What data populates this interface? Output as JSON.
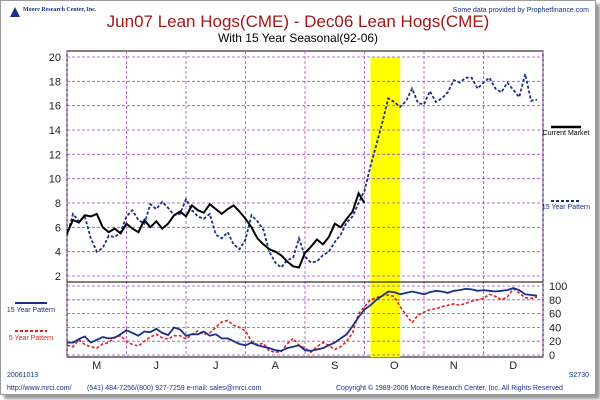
{
  "header": {
    "logo_text": "Moore Research Center, Inc.",
    "title": "Jun07 Lean Hogs(CME) - Dec06 Lean Hogs(CME)",
    "subtitle": "With 15 Year Seasonal(92-06)",
    "source_note": "Some data provided by Prophetfinance.com"
  },
  "footer": {
    "date_code": "20061013",
    "contact": "(541) 484-7256/(800) 927-7259   e-mail: sales@mrci.com",
    "website": "http://www.mrci.com/",
    "copyright": "Copyright © 1989-2006 Moore Research Center, Inc. All Rights Reserved",
    "code": "S2730"
  },
  "colors": {
    "current_market": "#000000",
    "pattern_15yr": "#1a2f8a",
    "pattern_5yr": "#e02020",
    "highlight": "#ffff00",
    "grid": "#9a4cc4",
    "title": "#a01818"
  },
  "chart_data": [
    {
      "type": "line",
      "title": "Jun07 Lean Hogs(CME) - Dec06 Lean Hogs(CME)",
      "ylim": [
        2,
        20
      ],
      "yticks": [
        2,
        4,
        6,
        8,
        10,
        12,
        14,
        16,
        18,
        20
      ],
      "x_month_labels": [
        "M",
        "J",
        "J",
        "A",
        "S",
        "O",
        "N",
        "D"
      ],
      "x_range_months": [
        0,
        8
      ],
      "highlight_window_months": [
        5.1,
        5.6
      ],
      "grid": true,
      "legend": [
        {
          "label": "Current Market",
          "style": "solid",
          "color": "#000000"
        },
        {
          "label": "15 Year Pattern",
          "style": "dashed",
          "color": "#1a2f8a"
        }
      ],
      "series": [
        {
          "name": "Current Market",
          "style": "solid",
          "x": [
            0.0,
            0.1,
            0.2,
            0.3,
            0.4,
            0.5,
            0.6,
            0.7,
            0.8,
            0.9,
            1.0,
            1.1,
            1.2,
            1.3,
            1.4,
            1.5,
            1.6,
            1.7,
            1.8,
            1.9,
            2.0,
            2.1,
            2.2,
            2.3,
            2.4,
            2.5,
            2.6,
            2.7,
            2.8,
            2.9,
            3.0,
            3.1,
            3.2,
            3.3,
            3.4,
            3.5,
            3.6,
            3.7,
            3.8,
            3.9,
            4.0,
            4.1,
            4.2,
            4.3,
            4.4,
            4.5,
            4.6,
            4.7,
            4.8,
            4.9,
            5.0
          ],
          "y": [
            5.5,
            6.6,
            6.4,
            7.0,
            6.9,
            7.1,
            6.0,
            5.6,
            5.9,
            5.5,
            6.3,
            5.9,
            5.6,
            6.6,
            6.0,
            6.5,
            5.9,
            6.3,
            7.0,
            7.3,
            6.9,
            7.8,
            7.4,
            7.2,
            7.9,
            7.5,
            7.1,
            7.5,
            7.8,
            7.3,
            6.7,
            6.0,
            5.1,
            4.6,
            4.2,
            4.0,
            3.7,
            3.2,
            2.8,
            2.7,
            3.9,
            4.4,
            5.0,
            4.6,
            5.2,
            6.3,
            6.0,
            6.7,
            7.3,
            8.8,
            8.0
          ]
        },
        {
          "name": "15 Year Pattern",
          "style": "dashed",
          "x": [
            0.0,
            0.1,
            0.2,
            0.3,
            0.4,
            0.5,
            0.6,
            0.7,
            0.8,
            0.9,
            1.0,
            1.1,
            1.2,
            1.3,
            1.4,
            1.5,
            1.6,
            1.7,
            1.8,
            1.9,
            2.0,
            2.1,
            2.2,
            2.3,
            2.4,
            2.5,
            2.6,
            2.7,
            2.8,
            2.9,
            3.0,
            3.1,
            3.2,
            3.3,
            3.4,
            3.5,
            3.6,
            3.7,
            3.8,
            3.9,
            4.0,
            4.1,
            4.2,
            4.3,
            4.4,
            4.5,
            4.6,
            4.7,
            4.8,
            4.9,
            5.0,
            5.1,
            5.2,
            5.3,
            5.4,
            5.5,
            5.6,
            5.7,
            5.8,
            5.9,
            6.0,
            6.1,
            6.2,
            6.3,
            6.4,
            6.5,
            6.6,
            6.7,
            6.8,
            6.9,
            7.0,
            7.1,
            7.2,
            7.3,
            7.4,
            7.5,
            7.6,
            7.7,
            7.8,
            7.9
          ],
          "y": [
            5.3,
            7.1,
            6.5,
            6.9,
            5.1,
            4.0,
            4.3,
            5.3,
            5.2,
            5.6,
            6.9,
            7.4,
            6.6,
            6.3,
            7.9,
            7.5,
            8.1,
            7.6,
            7.0,
            7.1,
            8.3,
            7.4,
            6.9,
            6.7,
            7.1,
            5.4,
            5.1,
            5.6,
            4.6,
            4.2,
            5.0,
            7.0,
            6.5,
            5.8,
            4.0,
            3.1,
            2.7,
            3.3,
            3.5,
            5.1,
            3.6,
            3.1,
            3.2,
            3.7,
            4.0,
            4.8,
            5.4,
            6.4,
            6.9,
            8.0,
            9.0,
            11.0,
            12.8,
            14.6,
            16.6,
            16.3,
            15.9,
            16.4,
            17.4,
            16.2,
            16.1,
            17.2,
            16.3,
            16.6,
            17.1,
            18.1,
            17.9,
            18.3,
            18.3,
            17.4,
            17.9,
            18.3,
            17.4,
            17.1,
            17.9,
            17.3,
            16.7,
            18.6,
            16.4,
            16.5
          ]
        }
      ]
    },
    {
      "type": "line",
      "ylim": [
        0,
        100
      ],
      "yticks": [
        0,
        20,
        40,
        60,
        80,
        100
      ],
      "x_month_labels": [
        "M",
        "J",
        "J",
        "A",
        "S",
        "O",
        "N",
        "D"
      ],
      "x_range_months": [
        0,
        8
      ],
      "grid": true,
      "legend": [
        {
          "label": "15 Year Pattern",
          "style": "solid",
          "color": "#1a2f8a"
        },
        {
          "label": "5 Year Pattern",
          "style": "dashed",
          "color": "#e02020"
        }
      ],
      "series": [
        {
          "name": "15 Year Pattern",
          "style": "solid",
          "x": [
            0.0,
            0.1,
            0.2,
            0.3,
            0.4,
            0.5,
            0.6,
            0.7,
            0.8,
            0.9,
            1.0,
            1.1,
            1.2,
            1.3,
            1.4,
            1.5,
            1.6,
            1.7,
            1.8,
            1.9,
            2.0,
            2.1,
            2.2,
            2.3,
            2.4,
            2.5,
            2.6,
            2.7,
            2.8,
            2.9,
            3.0,
            3.1,
            3.2,
            3.3,
            3.4,
            3.5,
            3.6,
            3.7,
            3.8,
            3.9,
            4.0,
            4.1,
            4.2,
            4.3,
            4.4,
            4.5,
            4.6,
            4.7,
            4.8,
            4.9,
            5.0,
            5.1,
            5.2,
            5.3,
            5.4,
            5.5,
            5.6,
            5.7,
            5.8,
            5.9,
            6.0,
            6.1,
            6.2,
            6.3,
            6.4,
            6.5,
            6.6,
            6.7,
            6.8,
            6.9,
            7.0,
            7.1,
            7.2,
            7.3,
            7.4,
            7.5,
            7.6,
            7.7,
            7.8,
            7.9
          ],
          "y": [
            18,
            18,
            23,
            27,
            18,
            22,
            26,
            24,
            25,
            30,
            36,
            32,
            28,
            34,
            33,
            38,
            32,
            29,
            40,
            37,
            28,
            30,
            30,
            34,
            28,
            30,
            24,
            24,
            20,
            16,
            14,
            18,
            14,
            12,
            10,
            7,
            6,
            10,
            12,
            14,
            7,
            6,
            8,
            10,
            14,
            18,
            24,
            30,
            42,
            55,
            66,
            72,
            80,
            86,
            92,
            91,
            88,
            90,
            92,
            90,
            88,
            91,
            93,
            92,
            90,
            93,
            94,
            96,
            95,
            93,
            94,
            93,
            92,
            93,
            94,
            97,
            94,
            88,
            87,
            86
          ]
        },
        {
          "name": "5 Year Pattern",
          "style": "dashed",
          "x": [
            0.0,
            0.1,
            0.2,
            0.3,
            0.4,
            0.5,
            0.6,
            0.7,
            0.8,
            0.9,
            1.0,
            1.1,
            1.2,
            1.3,
            1.4,
            1.5,
            1.6,
            1.7,
            1.8,
            1.9,
            2.0,
            2.1,
            2.2,
            2.3,
            2.4,
            2.5,
            2.6,
            2.7,
            2.8,
            2.9,
            3.0,
            3.1,
            3.2,
            3.3,
            3.4,
            3.5,
            3.6,
            3.7,
            3.8,
            3.9,
            4.0,
            4.1,
            4.2,
            4.3,
            4.4,
            4.5,
            4.6,
            4.7,
            4.8,
            4.9,
            5.0,
            5.1,
            5.2,
            5.3,
            5.4,
            5.5,
            5.6,
            5.7,
            5.8,
            5.9,
            6.0,
            6.1,
            6.2,
            6.3,
            6.4,
            6.5,
            6.6,
            6.7,
            6.8,
            6.9,
            7.0,
            7.1,
            7.2,
            7.3,
            7.4,
            7.5,
            7.6,
            7.7,
            7.8,
            7.9
          ],
          "y": [
            14,
            12,
            22,
            15,
            12,
            10,
            16,
            18,
            26,
            28,
            20,
            15,
            13,
            20,
            26,
            30,
            25,
            23,
            28,
            28,
            23,
            30,
            35,
            30,
            32,
            40,
            48,
            50,
            43,
            40,
            35,
            20,
            15,
            17,
            6,
            4,
            5,
            16,
            24,
            14,
            10,
            4,
            12,
            18,
            14,
            8,
            12,
            20,
            32,
            60,
            70,
            80,
            83,
            86,
            87,
            85,
            70,
            58,
            47,
            58,
            62,
            66,
            67,
            70,
            72,
            74,
            72,
            75,
            78,
            80,
            82,
            88,
            85,
            80,
            84,
            96,
            90,
            83,
            82,
            84
          ]
        }
      ]
    }
  ],
  "legends": {
    "current_market": "Current Market",
    "pattern_15yr": "15 Year Pattern",
    "pattern_5yr": "5 Year Pattern"
  }
}
